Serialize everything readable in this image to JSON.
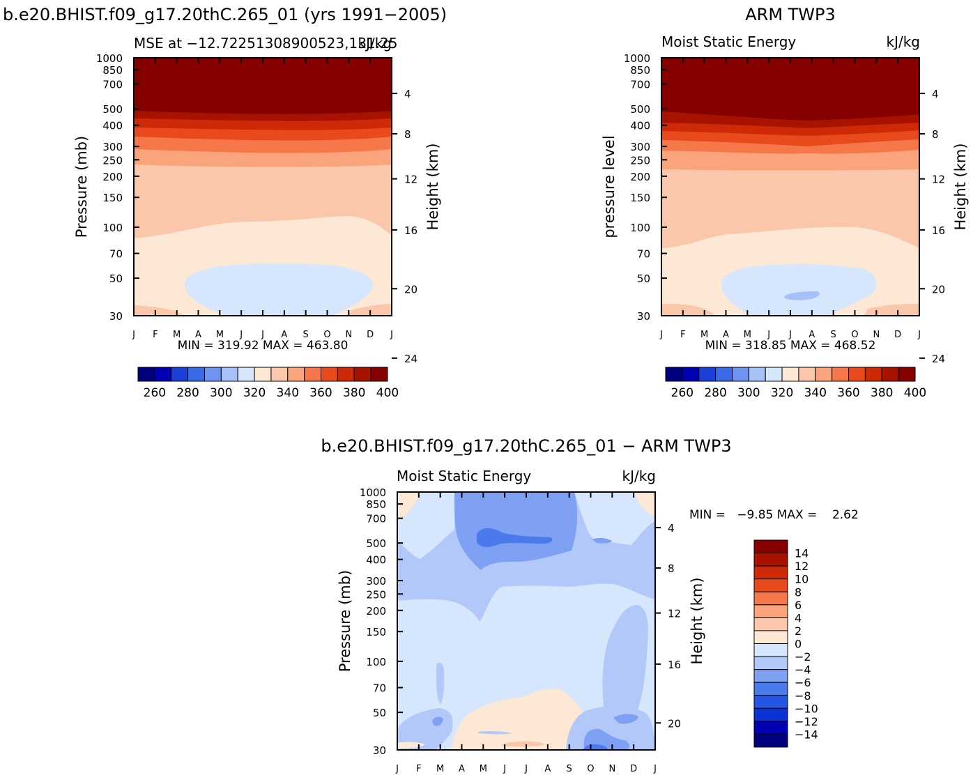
{
  "colors": {
    "abs_fills": [
      "#00007f",
      "#0000b2",
      "#1c3fd9",
      "#3b6be6",
      "#6e93f0",
      "#a6c1f7",
      "#d6e7fd",
      "#fde8d5",
      "#fbc7ab",
      "#f9a47a",
      "#f5774a",
      "#e84a1c",
      "#cf2a07",
      "#a81300",
      "#860000"
    ],
    "diff_fills": [
      "#00007f",
      "#0000b2",
      "#0a32d5",
      "#2356e3",
      "#4a7aeb",
      "#7ea1f3",
      "#b2c8f8",
      "#d6e7fd",
      "#fde8d5",
      "#fbc7ab",
      "#f9a47a",
      "#f5774a",
      "#e84a1c",
      "#cf2a07",
      "#a81300",
      "#860000"
    ]
  },
  "panels": {
    "model": {
      "title": "b.e20.BHIST.f09_g17.20thC.265_01 (yrs 1991−2005)",
      "left_string": "MSE at −12.72251308900523,131.25",
      "right_string": "kJ/kg",
      "left_axis_label": "Pressure (mb)",
      "right_axis_label": "Height (km)",
      "min_max": "MIN = 319.92 MAX = 463.80"
    },
    "obs": {
      "title": "ARM TWP3",
      "left_string": "Moist Static Energy",
      "right_string": "kJ/kg",
      "left_axis_label": "pressure level",
      "right_axis_label": "Height (km)",
      "min_max": "MIN = 318.85 MAX = 468.52"
    },
    "diff": {
      "title": "b.e20.BHIST.f09_g17.20thC.265_01 − ARM TWP3",
      "left_string": "Moist Static Energy",
      "right_string": "kJ/kg",
      "left_axis_label": "Pressure (mb)",
      "right_axis_label": "Height (km)",
      "min_max": "MIN =   −9.85 MAX =    2.62"
    }
  },
  "chart_data": [
    {
      "type": "heatmap",
      "title": "b.e20.BHIST.f09_g17.20thC.265_01 (yrs 1991−2005)",
      "subtitle": "MSE at −12.72251308900523,131.25",
      "units": "kJ/kg",
      "x": [
        "J",
        "F",
        "M",
        "A",
        "M",
        "J",
        "J",
        "A",
        "S",
        "O",
        "N",
        "D",
        "J"
      ],
      "y_pressure_ticks": [
        30,
        50,
        70,
        100,
        150,
        200,
        250,
        300,
        400,
        500,
        700,
        850,
        1000
      ],
      "y_height_ticks": [
        4,
        8,
        12,
        16,
        20,
        24
      ],
      "ylabel": "Pressure (mb)",
      "y2label": "Height (km)",
      "contour_levels": [
        260,
        270,
        280,
        290,
        300,
        310,
        320,
        330,
        340,
        350,
        360,
        370,
        380,
        390,
        400
      ],
      "approx_level_heights_km": {
        "330": 4.5,
        "340": 9.5,
        "350": 15.8,
        "360": 17.2,
        "370": 18.3,
        "380": 19.3,
        "390": 20.2,
        "400": 20.7
      },
      "min": 319.92,
      "max": 463.8
    },
    {
      "type": "heatmap",
      "title": "ARM TWP3",
      "subtitle": "Moist Static Energy",
      "units": "kJ/kg",
      "x": [
        "J",
        "F",
        "M",
        "A",
        "M",
        "J",
        "J",
        "A",
        "S",
        "O",
        "N",
        "D",
        "J"
      ],
      "y_pressure_ticks": [
        30,
        50,
        70,
        100,
        150,
        200,
        250,
        300,
        400,
        500,
        700,
        850,
        1000
      ],
      "y_height_ticks": [
        4,
        8,
        12,
        16,
        20,
        24
      ],
      "ylabel": "pressure level",
      "y2label": "Height (km)",
      "contour_levels": [
        260,
        270,
        280,
        290,
        300,
        310,
        320,
        330,
        340,
        350,
        360,
        370,
        380,
        390,
        400
      ],
      "approx_level_heights_km": {
        "320": 2.7,
        "330": 4.5,
        "340": 8.7,
        "350": 15.7,
        "360": 17.0,
        "370": 18.2,
        "380": 19.3,
        "390": 20.0,
        "400": 20.6
      },
      "min": 318.85,
      "max": 468.52
    },
    {
      "type": "heatmap",
      "title": "b.e20.BHIST.f09_g17.20thC.265_01 − ARM TWP3",
      "subtitle": "Moist Static Energy",
      "units": "kJ/kg",
      "x": [
        "J",
        "F",
        "M",
        "A",
        "M",
        "J",
        "J",
        "A",
        "S",
        "O",
        "N",
        "D",
        "J"
      ],
      "y_pressure_ticks": [
        30,
        50,
        70,
        100,
        150,
        200,
        250,
        300,
        400,
        500,
        700,
        850,
        1000
      ],
      "y_height_ticks": [
        4,
        8,
        12,
        16,
        20,
        24
      ],
      "ylabel": "Pressure (mb)",
      "y2label": "Height (km)",
      "contour_levels": [
        -14,
        -12,
        -10,
        -8,
        -6,
        -4,
        -2,
        0,
        2,
        4,
        6,
        8,
        10,
        12,
        14
      ],
      "min": -9.85,
      "max": 2.62
    }
  ],
  "colorbars": {
    "abs_labels": [
      "260",
      "280",
      "300",
      "320",
      "340",
      "360",
      "380",
      "400"
    ],
    "diff_labels": [
      "14",
      "12",
      "10",
      "8",
      "6",
      "4",
      "2",
      "0",
      "−2",
      "−4",
      "−6",
      "−8",
      "−10",
      "−12",
      "−14"
    ]
  }
}
